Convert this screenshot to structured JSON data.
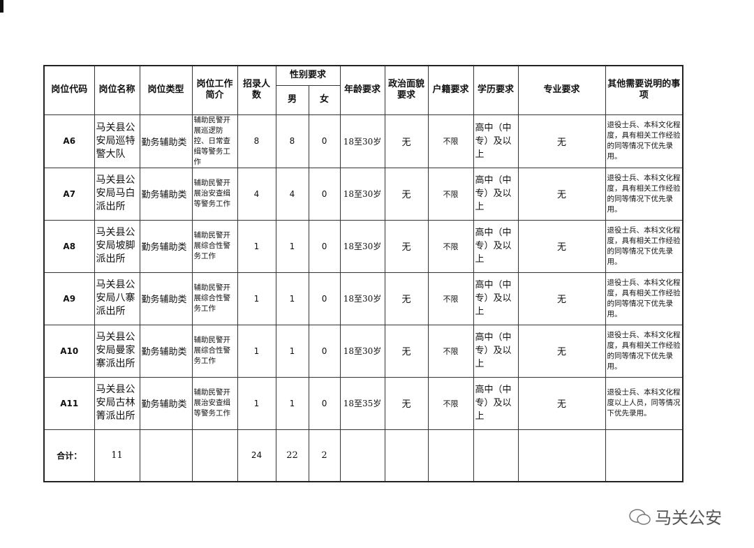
{
  "headers": [
    "岗位代码",
    "岗位名称",
    "岗位类型",
    "岗位工作简介",
    "招录人数",
    "性别要求",
    "年龄要求",
    "政治面貌要求",
    "户籍要求",
    "学历要求",
    "专业要求",
    "其他需要说明的事项"
  ],
  "gender_headers": [
    "男",
    "女"
  ],
  "rows": [
    [
      "A6",
      "马关县公安局巡特警大队",
      "勤务辅助类",
      "辅助民警开展巡逻防控、日常查缉等警务工作",
      8,
      8,
      0,
      "18至30岁",
      "无",
      "不限",
      "高中（中专）及以上",
      "无",
      "退役士兵、本科文化程度，具有相关工作经验的同等情况下优先录用。"
    ],
    [
      "A7",
      "马关县公安局马白派出所",
      "勤务辅助类",
      "辅助民警开展治安查缉等警务工作",
      4,
      4,
      0,
      "18至30岁",
      "无",
      "不限",
      "高中（中专）及以上",
      "无",
      "退役士兵、本科文化程度，具有相关工作经验的同等情况下优先录用。"
    ],
    [
      "A8",
      "马关县公安局坡脚派出所",
      "勤务辅助类",
      "辅助民警开展综合性警务工作",
      1,
      1,
      0,
      "18至30岁",
      "无",
      "不限",
      "高中（中专）及以上",
      "无",
      "退役士兵、本科文化程度，具有相关工作经验的同等情况下优先录用。"
    ],
    [
      "A9",
      "马关县公安局八寨派出所",
      "勤务辅助类",
      "辅助民警开展综合性警务工作",
      1,
      1,
      0,
      "18至30岁",
      "无",
      "不限",
      "高中（中专）及以上",
      "无",
      "退役士兵、本科文化程度，具有相关工作经验的同等情况下优先录用。"
    ],
    [
      "A10",
      "马关县公安局曼家寨派出所",
      "勤务辅助类",
      "辅助民警开展综合性警务工作",
      1,
      1,
      0,
      "18至30岁",
      "无",
      "不限",
      "高中（中专）及以上",
      "无",
      "退役士兵、本科文化程度，具有相关工作经验的同等情况下优先录用。"
    ],
    [
      "A11",
      "马关县公安局古林箐派出所",
      "勤务辅助类",
      "辅助民警开展治安查缉等警务工作",
      1,
      1,
      0,
      "18至35岁",
      "无",
      "不限",
      "高中（中专）及以上",
      "无",
      "退役士兵、本科文化程度以上人员，同等情况下优先录用。"
    ]
  ],
  "total": {
    "label": "合计：",
    "positions": 11,
    "recruits": 24,
    "male": 22,
    "female": 2
  },
  "watermark": "马关公安"
}
